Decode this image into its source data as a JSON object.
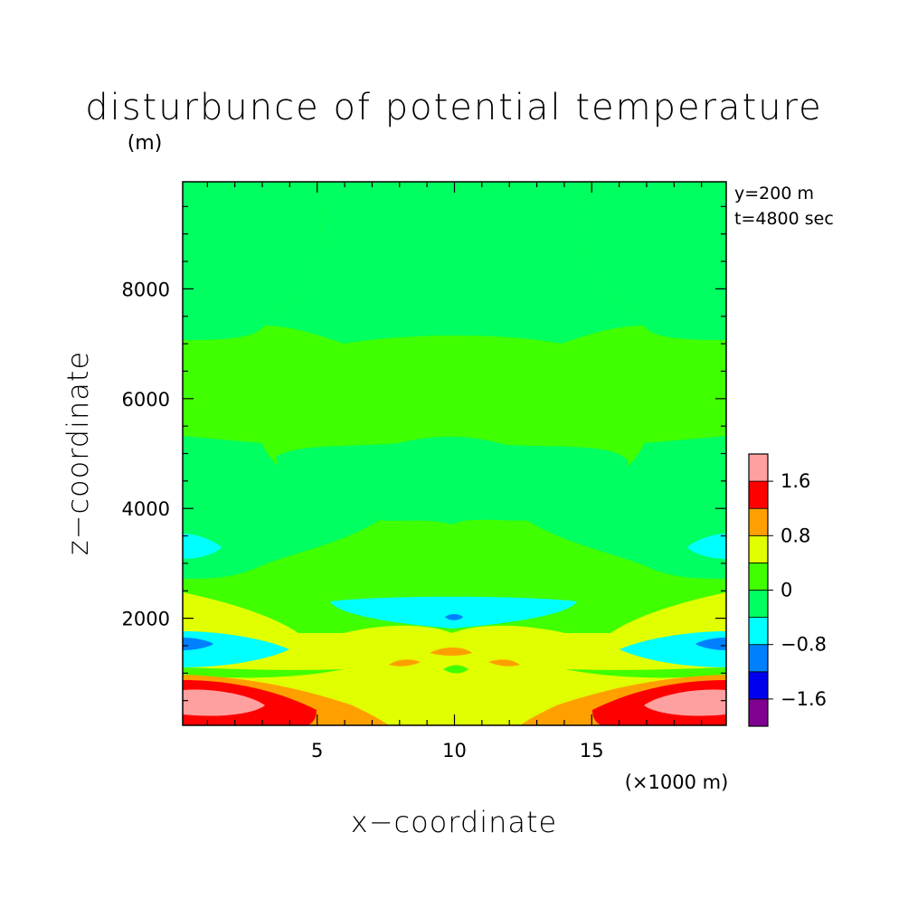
{
  "chart_data": {
    "type": "heatmap",
    "title": "disturbunce of potential temperature",
    "ylabel_unit": "(m)",
    "xlabel": "x−coordinate",
    "ylabel": "z−coordinate",
    "xunit": "(×1000 m)",
    "annotations": [
      "y=200 m",
      "t=4800 sec"
    ],
    "xlim": [
      0.1,
      19.9
    ],
    "ylim": [
      50,
      9950
    ],
    "x_ticks": [
      5,
      10,
      15
    ],
    "y_ticks": [
      2000,
      4000,
      6000,
      8000
    ],
    "x_tick_labels": [
      "5",
      "10",
      "15"
    ],
    "y_tick_labels": [
      "2000",
      "4000",
      "6000",
      "8000"
    ],
    "grid": false,
    "colorbar": {
      "placement": "right",
      "levels": [
        -2.0,
        -1.6,
        -1.2,
        -0.8,
        -0.4,
        0,
        0.4,
        0.8,
        1.2,
        1.6,
        2.0
      ],
      "labels": [
        "1.6",
        "0.8",
        "0",
        "−0.8",
        "−1.6"
      ],
      "label_values": [
        1.6,
        0.8,
        0,
        -0.8,
        -1.6
      ],
      "colors": [
        "#800090",
        "#0000ee",
        "#0080ff",
        "#00ffff",
        "#00ff60",
        "#40ff00",
        "#e0ff00",
        "#ffa000",
        "#ff0000",
        "#ffa0a0"
      ]
    },
    "regions": [
      {
        "z": [
          5200,
          9950
        ],
        "value": 0.2,
        "note": "upper background, 0 to 0.4"
      },
      {
        "z": [
          3800,
          5200
        ],
        "value": -0.2,
        "note": "mid-level band, -0.4 to 0"
      },
      {
        "z": [
          2600,
          3800
        ],
        "value": 0.2
      },
      {
        "z": [
          1700,
          2500
        ],
        "value": -0.6,
        "note": "cyan trough centered near x=10"
      },
      {
        "z": [
          1900,
          2100
        ],
        "value": -1.0,
        "note": "minimum near x=10"
      },
      {
        "z": [
          0,
          1700
        ],
        "value": 0.6,
        "note": "low-level positive layer"
      },
      {
        "z": [
          150,
          900
        ],
        "value": 1.8,
        "note": "maxima near x=2 and x=18"
      }
    ]
  }
}
